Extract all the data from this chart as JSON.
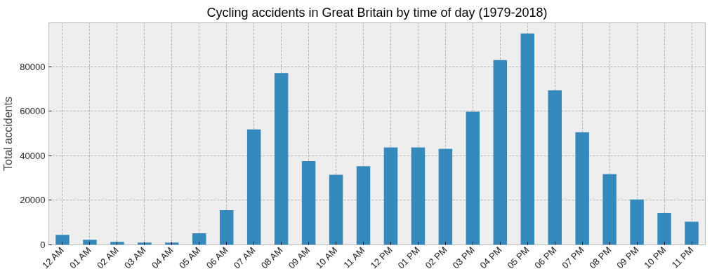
{
  "chart_data": {
    "type": "bar",
    "title": "Cycling accidents in Great Britain by time of day (1979-2018)",
    "ylabel": "Total accidents",
    "categories": [
      "12 AM",
      "01 AM",
      "02 AM",
      "03 AM",
      "04 AM",
      "05 AM",
      "06 AM",
      "07 AM",
      "08 AM",
      "09 AM",
      "10 AM",
      "11 AM",
      "12 PM",
      "01 PM",
      "02 PM",
      "03 PM",
      "04 PM",
      "05 PM",
      "06 PM",
      "07 PM",
      "08 PM",
      "09 PM",
      "10 PM",
      "11 PM"
    ],
    "values": [
      4500,
      2300,
      1300,
      1000,
      1000,
      5200,
      15600,
      51900,
      77200,
      37600,
      31500,
      35300,
      43800,
      43800,
      43100,
      59800,
      83000,
      95000,
      69400,
      50600,
      31800,
      20400,
      14300,
      10400
    ],
    "color": "#348abd",
    "ylim": [
      0,
      99800
    ],
    "yticks": [
      0,
      20000,
      40000,
      60000,
      80000
    ],
    "grid": true
  }
}
